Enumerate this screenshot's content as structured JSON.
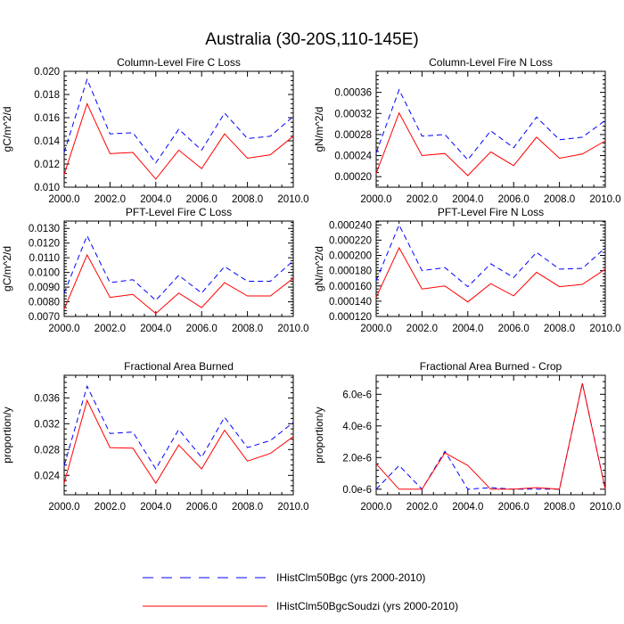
{
  "title": "Australia (30-20S,110-145E)",
  "colors": {
    "series_1": "#0000ff",
    "series_2": "#ff0000",
    "axis": "#000000"
  },
  "legend": {
    "entries": [
      {
        "label": "IHistClm50Bgc (yrs 2000-2010)",
        "color": "#0000ff",
        "style": "dashed"
      },
      {
        "label": "IHistClm50BgcSoudzi (yrs 2000-2010)",
        "color": "#ff0000",
        "style": "solid"
      }
    ]
  },
  "chart_data": [
    {
      "type": "line",
      "title": "Column-Level Fire C Loss",
      "ylabel": "gC/m^2/d",
      "x": [
        2000,
        2001,
        2002,
        2003,
        2004,
        2005,
        2006,
        2007,
        2008,
        2009,
        2010
      ],
      "xlim": [
        2000,
        2010
      ],
      "ylim": [
        0.01,
        0.02
      ],
      "xticks": [
        2000,
        2002,
        2004,
        2006,
        2008,
        2010
      ],
      "xtick_labels": [
        "2000.0",
        "2002.0",
        "2004.0",
        "2006.0",
        "2008.0",
        "2010.0"
      ],
      "yticks": [
        0.01,
        0.012,
        0.014,
        0.016,
        0.018,
        0.02
      ],
      "ytick_labels": [
        "0.010",
        "0.012",
        "0.014",
        "0.016",
        "0.018",
        "0.020"
      ],
      "series": [
        {
          "values": [
            0.013,
            0.0193,
            0.0146,
            0.0147,
            0.0121,
            0.015,
            0.0132,
            0.0164,
            0.0142,
            0.0144,
            0.0161
          ]
        },
        {
          "values": [
            0.0111,
            0.0172,
            0.0129,
            0.013,
            0.0107,
            0.0132,
            0.0116,
            0.0146,
            0.0125,
            0.0128,
            0.0144
          ]
        }
      ]
    },
    {
      "type": "line",
      "title": "Column-Level Fire N Loss",
      "ylabel": "gN/m^2/d",
      "x": [
        2000,
        2001,
        2002,
        2003,
        2004,
        2005,
        2006,
        2007,
        2008,
        2009,
        2010
      ],
      "xlim": [
        2000,
        2010
      ],
      "ylim": [
        0.00018,
        0.0004
      ],
      "xticks": [
        2000,
        2002,
        2004,
        2006,
        2008,
        2010
      ],
      "xtick_labels": [
        "2000.0",
        "2002.0",
        "2004.0",
        "2006.0",
        "2008.0",
        "2010.0"
      ],
      "yticks": [
        0.0002,
        0.00024,
        0.00028,
        0.00032,
        0.00036
      ],
      "ytick_labels": [
        "0.00020",
        "0.00024",
        "0.00028",
        "0.00032",
        "0.00036"
      ],
      "series": [
        {
          "values": [
            0.000245,
            0.000365,
            0.000277,
            0.00028,
            0.000232,
            0.000287,
            0.000255,
            0.000313,
            0.00027,
            0.000275,
            0.000307
          ]
        },
        {
          "values": [
            0.000206,
            0.000321,
            0.00024,
            0.000244,
            0.000202,
            0.000247,
            0.000221,
            0.000275,
            0.000235,
            0.000243,
            0.000268
          ]
        }
      ]
    },
    {
      "type": "line",
      "title": "PFT-Level Fire C Loss",
      "ylabel": "gC/m^2/d",
      "x": [
        2000,
        2001,
        2002,
        2003,
        2004,
        2005,
        2006,
        2007,
        2008,
        2009,
        2010
      ],
      "xlim": [
        2000,
        2010
      ],
      "ylim": [
        0.007,
        0.0135
      ],
      "xticks": [
        2000,
        2002,
        2004,
        2006,
        2008,
        2010
      ],
      "xtick_labels": [
        "2000.0",
        "2002.0",
        "2004.0",
        "2006.0",
        "2008.0",
        "2010.0"
      ],
      "yticks": [
        0.007,
        0.008,
        0.009,
        0.01,
        0.011,
        0.012,
        0.013
      ],
      "ytick_labels": [
        "0.0070",
        "0.0080",
        "0.0090",
        "0.0100",
        "0.0110",
        "0.0120",
        "0.0130"
      ],
      "series": [
        {
          "values": [
            0.0086,
            0.0125,
            0.0093,
            0.0095,
            0.0081,
            0.0098,
            0.0086,
            0.0104,
            0.0094,
            0.0094,
            0.0108
          ]
        },
        {
          "values": [
            0.0075,
            0.0112,
            0.0083,
            0.0085,
            0.0072,
            0.0086,
            0.0076,
            0.0093,
            0.0084,
            0.0084,
            0.0096
          ]
        }
      ]
    },
    {
      "type": "line",
      "title": "PFT-Level Fire N Loss",
      "ylabel": "gN/m^2/d",
      "x": [
        2000,
        2001,
        2002,
        2003,
        2004,
        2005,
        2006,
        2007,
        2008,
        2009,
        2010
      ],
      "xlim": [
        2000,
        2010
      ],
      "ylim": [
        0.00012,
        0.000245
      ],
      "xticks": [
        2000,
        2002,
        2004,
        2006,
        2008,
        2010
      ],
      "xtick_labels": [
        "2000.0",
        "2002.0",
        "2004.0",
        "2006.0",
        "2008.0",
        "2010.0"
      ],
      "yticks": [
        0.00012,
        0.00014,
        0.00016,
        0.00018,
        0.0002,
        0.00022,
        0.00024
      ],
      "ytick_labels": [
        "0.000120",
        "0.000140",
        "0.000160",
        "0.000180",
        "0.000200",
        "0.000220",
        "0.000240"
      ],
      "series": [
        {
          "values": [
            0.000167,
            0.00024,
            0.00018,
            0.000184,
            0.000159,
            0.000189,
            0.000171,
            0.000204,
            0.000182,
            0.000183,
            0.00021
          ]
        },
        {
          "values": [
            0.000145,
            0.00021,
            0.000156,
            0.00016,
            0.000139,
            0.000163,
            0.000147,
            0.000178,
            0.000159,
            0.000162,
            0.000182
          ]
        }
      ]
    },
    {
      "type": "line",
      "title": "Fractional Area Burned",
      "ylabel": "proportion/y",
      "x": [
        2000,
        2001,
        2002,
        2003,
        2004,
        2005,
        2006,
        2007,
        2008,
        2009,
        2010
      ],
      "xlim": [
        2000,
        2010
      ],
      "ylim": [
        0.021,
        0.0395
      ],
      "xticks": [
        2000,
        2002,
        2004,
        2006,
        2008,
        2010
      ],
      "xtick_labels": [
        "2000.0",
        "2002.0",
        "2004.0",
        "2006.0",
        "2008.0",
        "2010.0"
      ],
      "yticks": [
        0.024,
        0.028,
        0.032,
        0.036
      ],
      "ytick_labels": [
        "0.024",
        "0.028",
        "0.032",
        "0.036"
      ],
      "series": [
        {
          "values": [
            0.0255,
            0.0378,
            0.0305,
            0.0307,
            0.025,
            0.0311,
            0.0268,
            0.033,
            0.0283,
            0.0294,
            0.0322
          ]
        },
        {
          "values": [
            0.0228,
            0.0356,
            0.0283,
            0.0282,
            0.0228,
            0.0287,
            0.025,
            0.031,
            0.0262,
            0.0274,
            0.03
          ]
        }
      ]
    },
    {
      "type": "line",
      "title": "Fractional Area Burned - Crop",
      "ylabel": "proportion/y",
      "x": [
        2000,
        2001,
        2002,
        2003,
        2004,
        2005,
        2006,
        2007,
        2008,
        2009,
        2010
      ],
      "xlim": [
        2000,
        2010
      ],
      "ylim": [
        -3.5e-07,
        7.2e-06
      ],
      "xticks": [
        2000,
        2002,
        2004,
        2006,
        2008,
        2010
      ],
      "xtick_labels": [
        "2000.0",
        "2002.0",
        "2004.0",
        "2006.0",
        "2008.0",
        "2010.0"
      ],
      "yticks": [
        0,
        2e-06,
        4e-06,
        6e-06
      ],
      "ytick_labels": [
        "0.0e-6",
        "2.0e-6",
        "4.0e-6",
        "6.0e-6"
      ],
      "series": [
        {
          "values": [
            0.0,
            1.5e-06,
            0.0,
            2.4e-06,
            0.0,
            1e-07,
            0.0,
            0.0,
            0.0,
            6.7e-06,
            0.0
          ]
        },
        {
          "values": [
            1.6e-06,
            0.0,
            0.0,
            2.3e-06,
            1.5e-06,
            0.0,
            0.0,
            1e-07,
            0.0,
            6.7e-06,
            0.0
          ]
        }
      ]
    }
  ]
}
